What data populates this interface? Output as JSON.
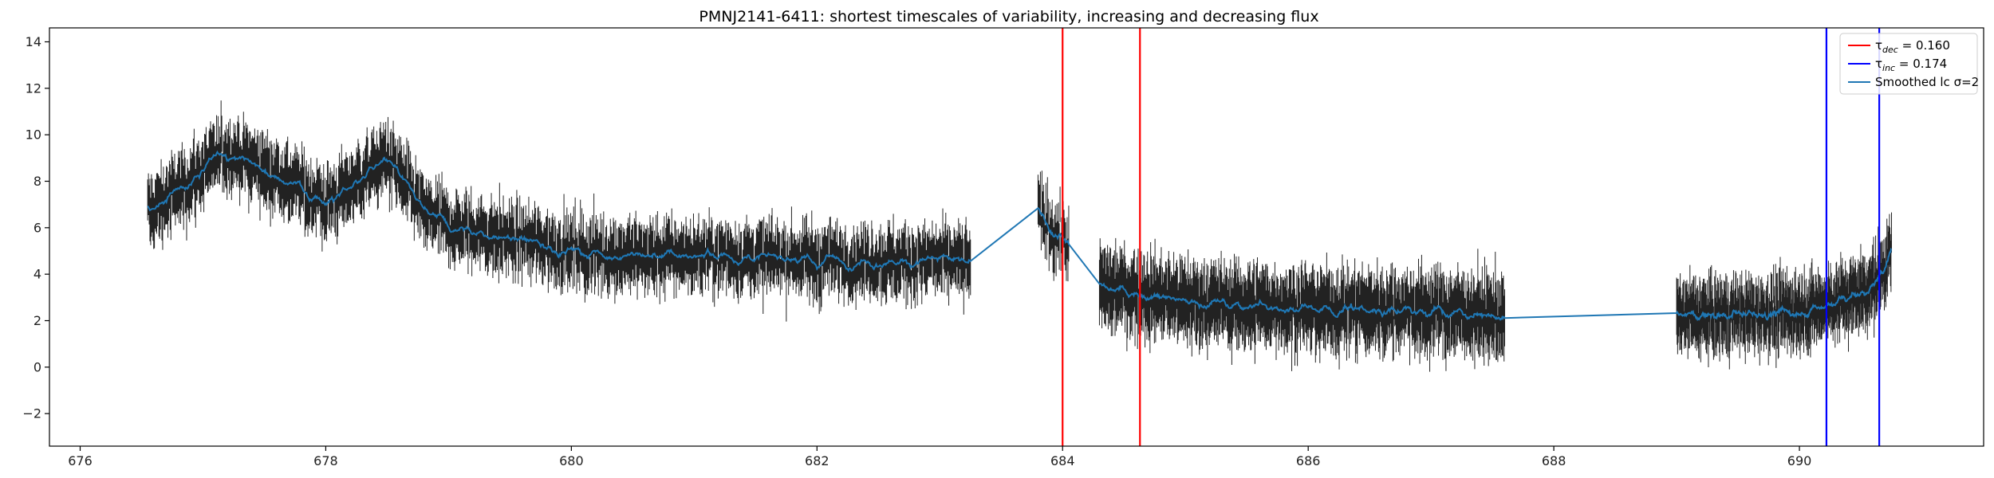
{
  "chart_data": {
    "type": "line",
    "title": "PMNJ2141-6411: shortest timescales of variability, increasing and decreasing flux",
    "xlabel": "",
    "ylabel": "",
    "xlim": [
      675.75,
      691.5
    ],
    "ylim": [
      -3.4,
      14.6
    ],
    "xticks": [
      676,
      678,
      680,
      682,
      684,
      686,
      688,
      690
    ],
    "yticks": [
      -2,
      0,
      2,
      4,
      6,
      8,
      10,
      12,
      14
    ],
    "grid": false,
    "legend_position": "top-right",
    "colors": {
      "errorbars": "#222222",
      "smoothed": "#1f77b4",
      "tau_dec": "#ff0000",
      "tau_inc": "#0000ff"
    },
    "legend": [
      {
        "key": "tau_dec",
        "symbol": "τ",
        "subscript": "dec",
        "text": " = 0.160"
      },
      {
        "key": "tau_inc",
        "symbol": "τ",
        "subscript": "inc",
        "text": " = 0.174"
      },
      {
        "key": "smoothed",
        "symbol": "",
        "subscript": "",
        "text": "Smoothed lc σ=2"
      }
    ],
    "vertical_lines": [
      {
        "series": "tau_dec",
        "x": 684.0
      },
      {
        "series": "tau_dec",
        "x": 684.63
      },
      {
        "series": "tau_inc",
        "x": 690.22
      },
      {
        "series": "tau_inc",
        "x": 690.65
      }
    ],
    "segments": [
      {
        "x_start": 676.55,
        "x_end": 683.25,
        "n": 1100,
        "err": 1.1,
        "trend": [
          [
            676.55,
            6.6
          ],
          [
            677.2,
            9.3
          ],
          [
            677.7,
            8.0
          ],
          [
            678.0,
            7.0
          ],
          [
            678.5,
            9.0
          ],
          [
            678.8,
            6.6
          ],
          [
            679.0,
            6.0
          ],
          [
            679.5,
            5.5
          ],
          [
            680.0,
            5.0
          ],
          [
            680.5,
            4.8
          ],
          [
            681.0,
            4.8
          ],
          [
            682.0,
            4.6
          ],
          [
            683.25,
            4.5
          ]
        ]
      },
      {
        "x_start": 683.8,
        "x_end": 684.05,
        "n": 40,
        "err": 1.0,
        "trend": [
          [
            683.8,
            6.6
          ],
          [
            684.05,
            5.2
          ]
        ]
      },
      {
        "x_start": 684.3,
        "x_end": 687.6,
        "n": 650,
        "err": 1.3,
        "trend": [
          [
            684.3,
            3.4
          ],
          [
            684.6,
            3.2
          ],
          [
            685.0,
            2.8
          ],
          [
            686.0,
            2.5
          ],
          [
            687.0,
            2.4
          ],
          [
            687.6,
            2.2
          ]
        ]
      },
      {
        "x_start": 689.0,
        "x_end": 690.75,
        "n": 420,
        "err": 1.1,
        "trend": [
          [
            689.0,
            2.2
          ],
          [
            689.8,
            2.3
          ],
          [
            690.2,
            2.6
          ],
          [
            690.45,
            3.1
          ],
          [
            690.62,
            3.6
          ],
          [
            690.75,
            4.9
          ]
        ]
      }
    ]
  }
}
